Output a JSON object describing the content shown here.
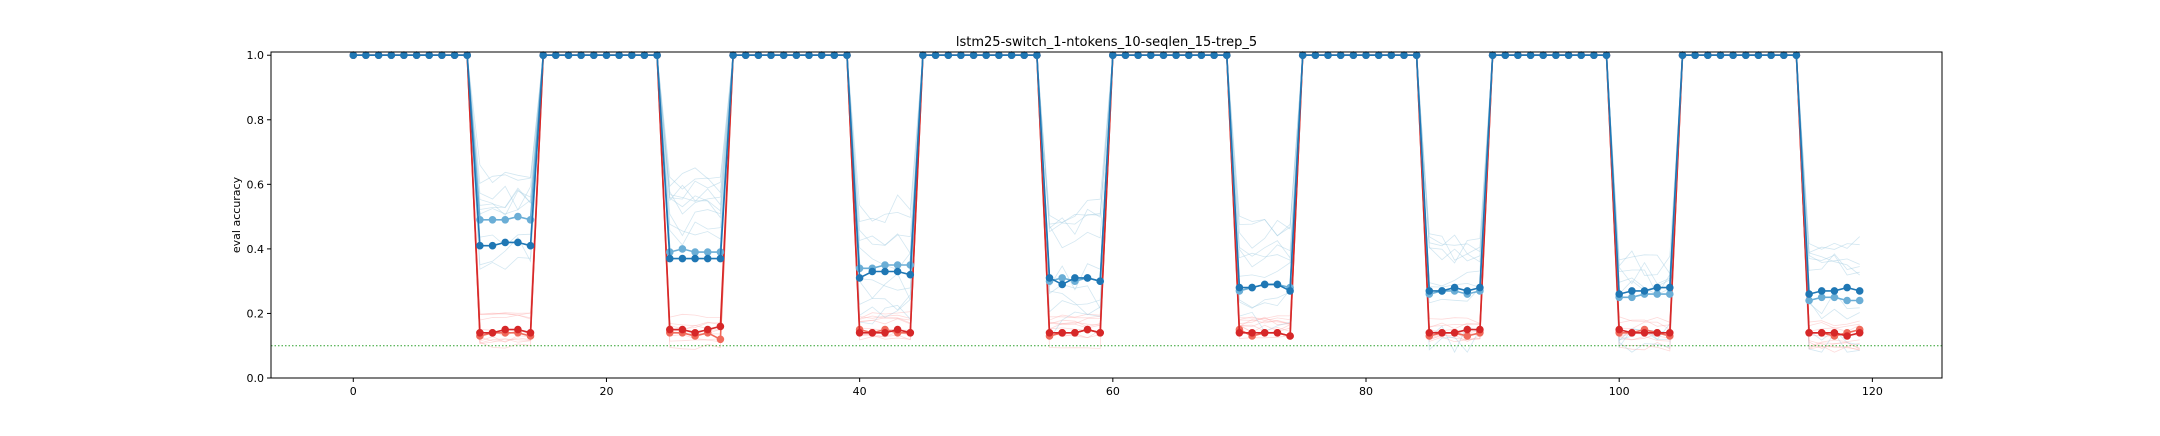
{
  "chart_data": {
    "type": "line",
    "title": "lstm25-switch_1-ntokens_10-seqlen_15-trep_5",
    "xlabel": "",
    "ylabel": "eval accuracy",
    "xlim": [
      -6.5,
      125.5
    ],
    "ylim": [
      0.0,
      1.01
    ],
    "x_ticks": [
      0,
      20,
      40,
      60,
      80,
      100,
      120
    ],
    "y_ticks": [
      0.0,
      0.2,
      0.4,
      0.6,
      0.8,
      1.0
    ],
    "x_tick_labels": [
      "0",
      "20",
      "40",
      "60",
      "80",
      "100",
      "120"
    ],
    "y_tick_labels": [
      "0.0",
      "0.2",
      "0.4",
      "0.6",
      "0.8",
      "1.0"
    ],
    "grid": false,
    "chance_level": {
      "value": 0.1,
      "color": "#2ca02c",
      "style": "dotted"
    },
    "period": 15,
    "high_phase_length": 10,
    "low_phase_length": 5,
    "high_accuracy": 1.0,
    "series": [
      {
        "color": "#1f77b4",
        "marker": "circle",
        "low_segments": [
          [
            0.41,
            0.41,
            0.42,
            0.42,
            0.41
          ],
          [
            0.37,
            0.37,
            0.37,
            0.37,
            0.37
          ],
          [
            0.31,
            0.33,
            0.33,
            0.33,
            0.32
          ],
          [
            0.31,
            0.29,
            0.31,
            0.31,
            0.3
          ],
          [
            0.28,
            0.28,
            0.29,
            0.29,
            0.27
          ],
          [
            0.27,
            0.27,
            0.28,
            0.27,
            0.28
          ],
          [
            0.26,
            0.27,
            0.27,
            0.28,
            0.28
          ],
          [
            0.26,
            0.27,
            0.27,
            0.28,
            0.27
          ]
        ]
      },
      {
        "color": "#6baed6",
        "marker": "circle",
        "low_segments": [
          [
            0.49,
            0.49,
            0.49,
            0.5,
            0.49
          ],
          [
            0.39,
            0.4,
            0.39,
            0.39,
            0.39
          ],
          [
            0.34,
            0.34,
            0.35,
            0.35,
            0.35
          ],
          [
            0.3,
            0.31,
            0.3,
            0.31,
            0.3
          ],
          [
            0.27,
            0.28,
            0.29,
            0.29,
            0.28
          ],
          [
            0.26,
            0.27,
            0.27,
            0.26,
            0.27
          ],
          [
            0.25,
            0.25,
            0.26,
            0.26,
            0.26
          ],
          [
            0.24,
            0.25,
            0.25,
            0.24,
            0.24
          ]
        ]
      },
      {
        "color": "#d62728",
        "marker": "circle",
        "low_segments": [
          [
            0.14,
            0.14,
            0.15,
            0.15,
            0.14
          ],
          [
            0.15,
            0.15,
            0.14,
            0.15,
            0.16
          ],
          [
            0.14,
            0.14,
            0.14,
            0.15,
            0.14
          ],
          [
            0.14,
            0.14,
            0.14,
            0.15,
            0.14
          ],
          [
            0.14,
            0.14,
            0.14,
            0.14,
            0.13
          ],
          [
            0.14,
            0.14,
            0.14,
            0.15,
            0.15
          ],
          [
            0.15,
            0.14,
            0.14,
            0.14,
            0.14
          ],
          [
            0.14,
            0.14,
            0.14,
            0.13,
            0.14
          ]
        ]
      },
      {
        "color": "#f06a5b",
        "marker": "circle",
        "low_segments": [
          [
            0.13,
            0.14,
            0.14,
            0.14,
            0.13
          ],
          [
            0.14,
            0.14,
            0.13,
            0.14,
            0.12
          ],
          [
            0.15,
            0.14,
            0.15,
            0.14,
            0.14
          ],
          [
            0.13,
            0.14,
            0.14,
            0.15,
            0.14
          ],
          [
            0.15,
            0.13,
            0.14,
            0.14,
            0.13
          ],
          [
            0.13,
            0.14,
            0.14,
            0.13,
            0.14
          ],
          [
            0.14,
            0.14,
            0.15,
            0.14,
            0.13
          ],
          [
            0.14,
            0.14,
            0.13,
            0.14,
            0.15
          ]
        ]
      }
    ],
    "faint_runs": {
      "blue_color": "#9ecae1",
      "red_color": "#fcaeae",
      "blue_low_mean": [
        0.5,
        0.44,
        0.36,
        0.34,
        0.32,
        0.29,
        0.28,
        0.27
      ],
      "red_low_mean": [
        0.15,
        0.15,
        0.15,
        0.15,
        0.14,
        0.14,
        0.14,
        0.14
      ]
    }
  }
}
